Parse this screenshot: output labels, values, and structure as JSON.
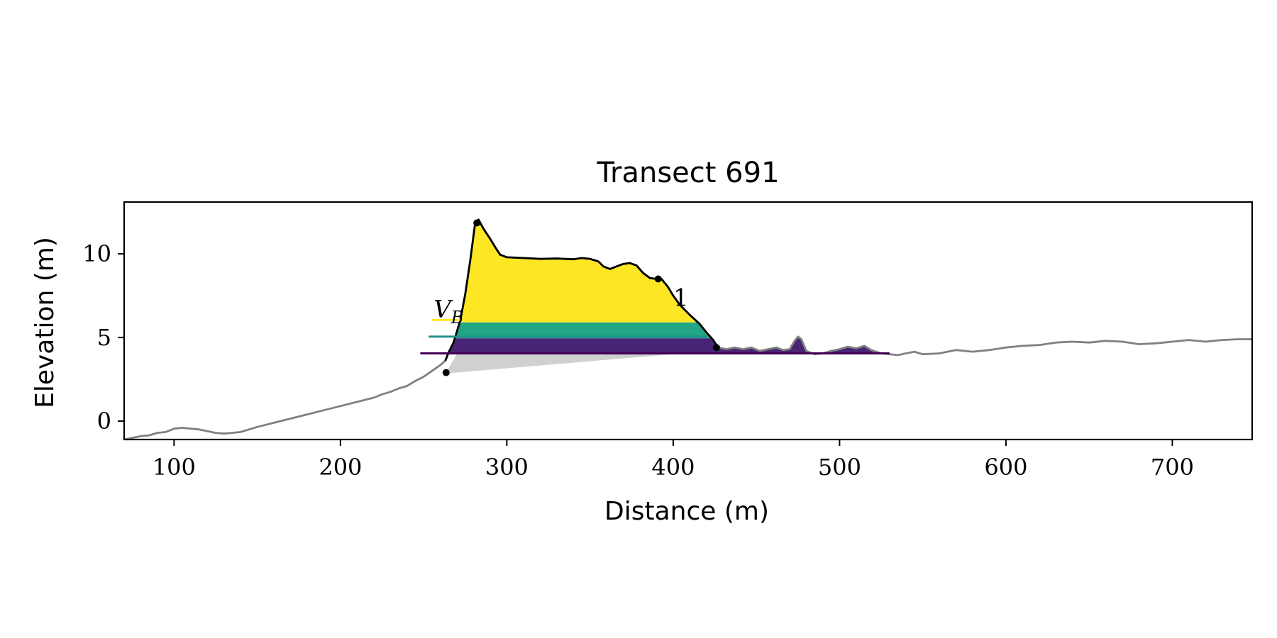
{
  "chart_data": {
    "type": "area",
    "title": "Transect 691",
    "xlabel": "Distance (m)",
    "ylabel": "Elevation (m)",
    "xlim": [
      70,
      748
    ],
    "ylim": [
      -1.1,
      13.1
    ],
    "xticks": [
      {
        "value": 100,
        "label": "100"
      },
      {
        "value": 200,
        "label": "200"
      },
      {
        "value": 300,
        "label": "300"
      },
      {
        "value": 400,
        "label": "400"
      },
      {
        "value": 500,
        "label": "500"
      },
      {
        "value": 600,
        "label": "600"
      },
      {
        "value": 700,
        "label": "700"
      }
    ],
    "yticks": [
      {
        "value": 0,
        "label": "0"
      },
      {
        "value": 5,
        "label": "5"
      },
      {
        "value": 10,
        "label": "10"
      }
    ],
    "grid": false,
    "colors": {
      "profile": "#808080",
      "crest_outline": "#000000",
      "upper_fill": "#fde725",
      "mid_fill": "#21a585",
      "lower_fill": "#482574",
      "base_fill": "#d0d0d0",
      "yellow_ref": "#fde725",
      "teal_ref": "#21908d",
      "purple_ref": "#440154"
    },
    "profile": [
      [
        70,
        -1.1
      ],
      [
        75,
        -1.0
      ],
      [
        80,
        -0.9
      ],
      [
        85,
        -0.85
      ],
      [
        90,
        -0.7
      ],
      [
        95,
        -0.65
      ],
      [
        100,
        -0.45
      ],
      [
        105,
        -0.4
      ],
      [
        110,
        -0.45
      ],
      [
        115,
        -0.5
      ],
      [
        120,
        -0.6
      ],
      [
        125,
        -0.7
      ],
      [
        130,
        -0.75
      ],
      [
        135,
        -0.7
      ],
      [
        140,
        -0.65
      ],
      [
        145,
        -0.5
      ],
      [
        150,
        -0.35
      ],
      [
        160,
        -0.1
      ],
      [
        170,
        0.15
      ],
      [
        180,
        0.4
      ],
      [
        190,
        0.65
      ],
      [
        200,
        0.9
      ],
      [
        210,
        1.15
      ],
      [
        220,
        1.4
      ],
      [
        225,
        1.6
      ],
      [
        230,
        1.75
      ],
      [
        235,
        1.95
      ],
      [
        240,
        2.1
      ],
      [
        245,
        2.4
      ],
      [
        250,
        2.65
      ],
      [
        255,
        3.0
      ],
      [
        260,
        3.35
      ],
      [
        263,
        3.6
      ],
      [
        265,
        4.1
      ],
      [
        268,
        4.7
      ],
      [
        272,
        6.0
      ],
      [
        275,
        7.6
      ],
      [
        278,
        9.6
      ],
      [
        281,
        11.85
      ],
      [
        283,
        12.05
      ],
      [
        286,
        11.5
      ],
      [
        290,
        10.9
      ],
      [
        293,
        10.4
      ],
      [
        296,
        9.95
      ],
      [
        300,
        9.8
      ],
      [
        310,
        9.75
      ],
      [
        320,
        9.7
      ],
      [
        330,
        9.72
      ],
      [
        340,
        9.68
      ],
      [
        345,
        9.75
      ],
      [
        350,
        9.7
      ],
      [
        355,
        9.55
      ],
      [
        358,
        9.25
      ],
      [
        362,
        9.1
      ],
      [
        366,
        9.25
      ],
      [
        370,
        9.4
      ],
      [
        374,
        9.45
      ],
      [
        378,
        9.3
      ],
      [
        382,
        8.85
      ],
      [
        386,
        8.55
      ],
      [
        390,
        8.5
      ],
      [
        393,
        8.5
      ],
      [
        397,
        8.0
      ],
      [
        400,
        7.5
      ],
      [
        404,
        6.95
      ],
      [
        410,
        6.35
      ],
      [
        416,
        5.8
      ],
      [
        420,
        5.3
      ],
      [
        424,
        4.85
      ],
      [
        427,
        4.4
      ],
      [
        432,
        4.3
      ],
      [
        437,
        4.4
      ],
      [
        442,
        4.3
      ],
      [
        447,
        4.4
      ],
      [
        452,
        4.2
      ],
      [
        457,
        4.3
      ],
      [
        462,
        4.4
      ],
      [
        466,
        4.25
      ],
      [
        470,
        4.3
      ],
      [
        473,
        4.8
      ],
      [
        475,
        5.05
      ],
      [
        477,
        4.9
      ],
      [
        480,
        4.2
      ],
      [
        485,
        4.0
      ],
      [
        490,
        4.05
      ],
      [
        495,
        4.2
      ],
      [
        500,
        4.3
      ],
      [
        505,
        4.45
      ],
      [
        510,
        4.35
      ],
      [
        515,
        4.5
      ],
      [
        519,
        4.25
      ],
      [
        525,
        4.05
      ],
      [
        535,
        3.95
      ],
      [
        545,
        4.15
      ],
      [
        550,
        4.0
      ],
      [
        560,
        4.05
      ],
      [
        570,
        4.25
      ],
      [
        580,
        4.15
      ],
      [
        590,
        4.25
      ],
      [
        600,
        4.4
      ],
      [
        610,
        4.5
      ],
      [
        620,
        4.55
      ],
      [
        630,
        4.7
      ],
      [
        640,
        4.75
      ],
      [
        650,
        4.7
      ],
      [
        660,
        4.8
      ],
      [
        670,
        4.75
      ],
      [
        680,
        4.6
      ],
      [
        690,
        4.65
      ],
      [
        700,
        4.75
      ],
      [
        710,
        4.85
      ],
      [
        720,
        4.75
      ],
      [
        730,
        4.85
      ],
      [
        740,
        4.9
      ],
      [
        748,
        4.9
      ]
    ],
    "crest_outline_range": [
      263,
      427
    ],
    "layers": [
      {
        "name": "upper",
        "bottom": 5.9,
        "top": 13.0,
        "color": "#fde725"
      },
      {
        "name": "mid",
        "bottom": 4.95,
        "top": 5.9,
        "color": "#21a585"
      },
      {
        "name": "lower",
        "bottom": 4.0,
        "top": 4.95,
        "color": "#482574"
      }
    ],
    "layers_x_range": [
      263,
      530
    ],
    "base_wedge": [
      [
        263,
        2.85
      ],
      [
        270,
        4.0
      ],
      [
        400,
        4.0
      ],
      [
        263,
        2.85
      ]
    ],
    "reference_lines": [
      {
        "y": 6.05,
        "x0": 255,
        "x1": 273,
        "color": "#fde725"
      },
      {
        "y": 5.05,
        "x0": 253,
        "x1": 420,
        "color": "#21908d"
      },
      {
        "y": 4.05,
        "x0": 248,
        "x1": 530,
        "color": "#440154"
      }
    ],
    "key_points": [
      {
        "x": 263.5,
        "y": 2.9
      },
      {
        "x": 282,
        "y": 11.85
      },
      {
        "x": 391,
        "y": 8.5
      },
      {
        "x": 426,
        "y": 4.4
      }
    ],
    "annotations": [
      {
        "x": 256,
        "y": 6.2,
        "text": "V",
        "sub": "B"
      },
      {
        "x": 400,
        "y": 6.9,
        "text": "1"
      }
    ]
  }
}
